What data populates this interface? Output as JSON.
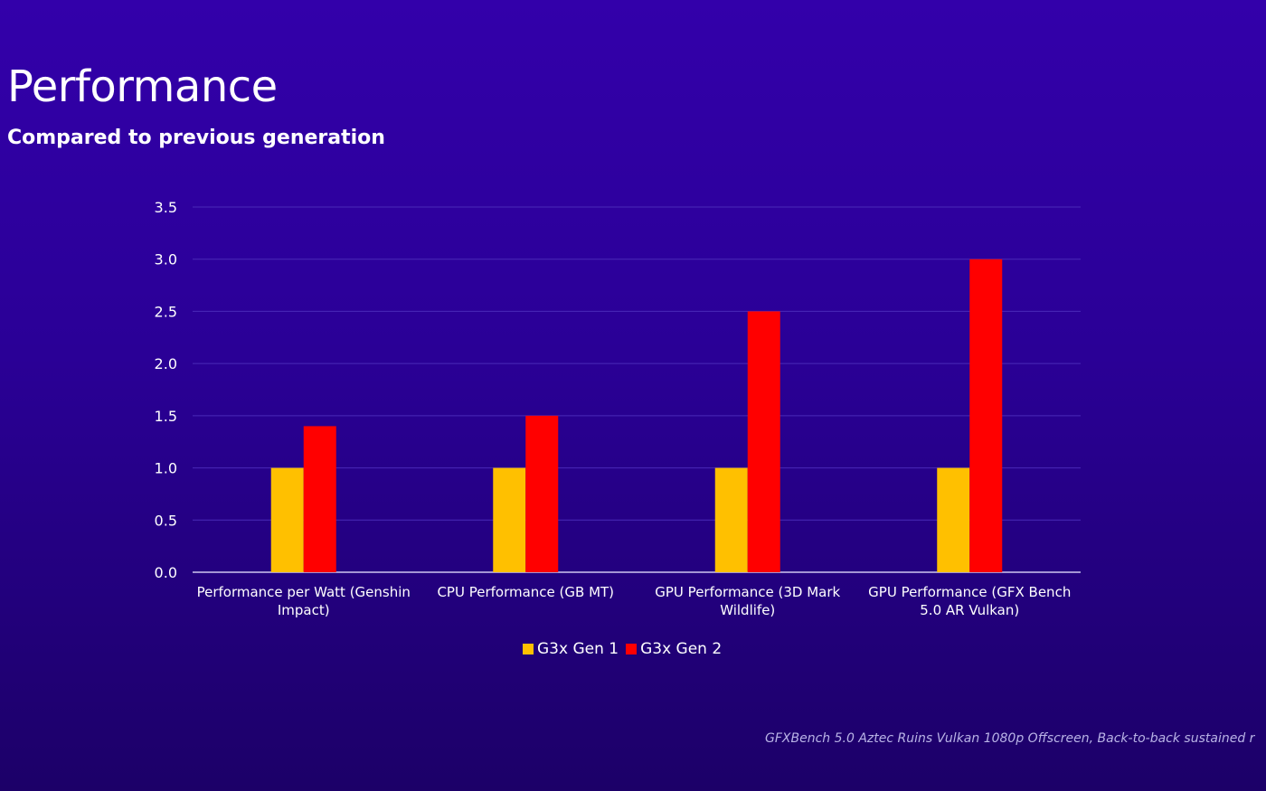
{
  "slide": {
    "title": "Performance",
    "subtitle": "Compared to previous generation",
    "footnote": "GFXBench 5.0 Aztec Ruins Vulkan 1080p Offscreen, Back-to-back sustained r"
  },
  "colors": {
    "gen1": "#ffc000",
    "gen2": "#ff0000",
    "grid": "#4a2ab8",
    "axis": "#d0c8f0",
    "text": "#ffffff"
  },
  "chart_data": {
    "type": "bar",
    "title": "",
    "xlabel": "",
    "ylabel": "",
    "ylim": [
      0,
      3.5
    ],
    "yticks": [
      "0.0",
      "0.5",
      "1.0",
      "1.5",
      "2.0",
      "2.5",
      "3.0",
      "3.5"
    ],
    "ytick_values": [
      0,
      0.5,
      1.0,
      1.5,
      2.0,
      2.5,
      3.0,
      3.5
    ],
    "categories": [
      [
        "Performance per Watt (Genshin",
        "Impact)"
      ],
      [
        "CPU Performance (GB MT)"
      ],
      [
        "GPU Performance (3D Mark",
        "Wildlife)"
      ],
      [
        "GPU Performance (GFX Bench",
        "5.0 AR Vulkan)"
      ]
    ],
    "series": [
      {
        "name": "G3x Gen 1",
        "values": [
          1.0,
          1.0,
          1.0,
          1.0
        ]
      },
      {
        "name": "G3x Gen 2",
        "values": [
          1.4,
          1.5,
          2.5,
          3.0
        ]
      }
    ],
    "legend_position": "bottom",
    "grid": true
  }
}
